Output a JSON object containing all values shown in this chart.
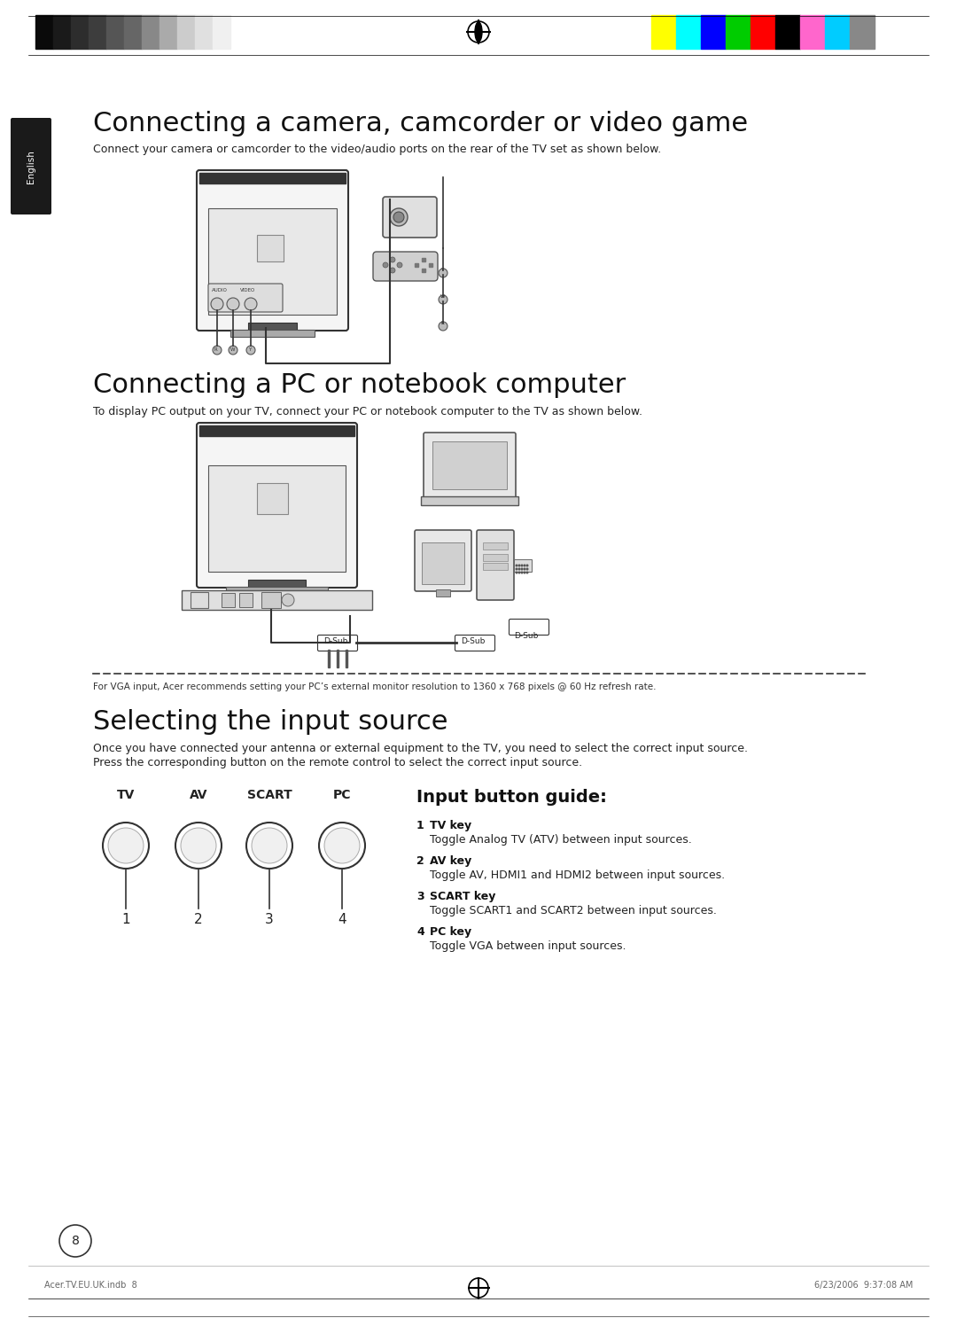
{
  "bg_color": "#ffffff",
  "page_margin_color": "#f0f0f0",
  "section1_title": "Connecting a camera, camcorder or video game",
  "section1_body": "Connect your camera or camcorder to the video/audio ports on the rear of the TV set as shown below.",
  "section2_title": "Connecting a PC or notebook computer",
  "section2_body": "To display PC output on your TV, connect your PC or notebook computer to the TV as shown below.",
  "vga_note": "For VGA input, Acer recommends setting your PC’s external monitor resolution to 1360 x 768 pixels @ 60 Hz refresh rate.",
  "section3_title": "Selecting the input source",
  "section3_body1": "Once you have connected your antenna or external equipment to the TV, you need to select the correct input source.",
  "section3_body2": "Press the corresponding button on the remote control to select the correct input source.",
  "input_guide_title": "Input button guide:",
  "input_labels": [
    "TV",
    "AV",
    "SCART",
    "PC"
  ],
  "input_numbers": [
    "1",
    "2",
    "3",
    "4"
  ],
  "guide_items": [
    {
      "num": "1",
      "key": "TV key",
      "desc": "Toggle Analog TV (ATV) between input sources."
    },
    {
      "num": "2",
      "key": "AV key",
      "desc": "Toggle AV, HDMI1 and HDMI2 between input sources."
    },
    {
      "num": "3",
      "key": "SCART key",
      "desc": "Toggle SCART1 and SCART2 between input sources."
    },
    {
      "num": "4",
      "key": "PC key",
      "desc": "Toggle VGA between input sources."
    }
  ],
  "page_number": "8",
  "footer_left": "Acer.TV.EU.UK.indb  8",
  "footer_right": "6/23/2006  9:37:08 AM",
  "english_tab_color": "#1a1a1a",
  "english_tab_text": "English"
}
